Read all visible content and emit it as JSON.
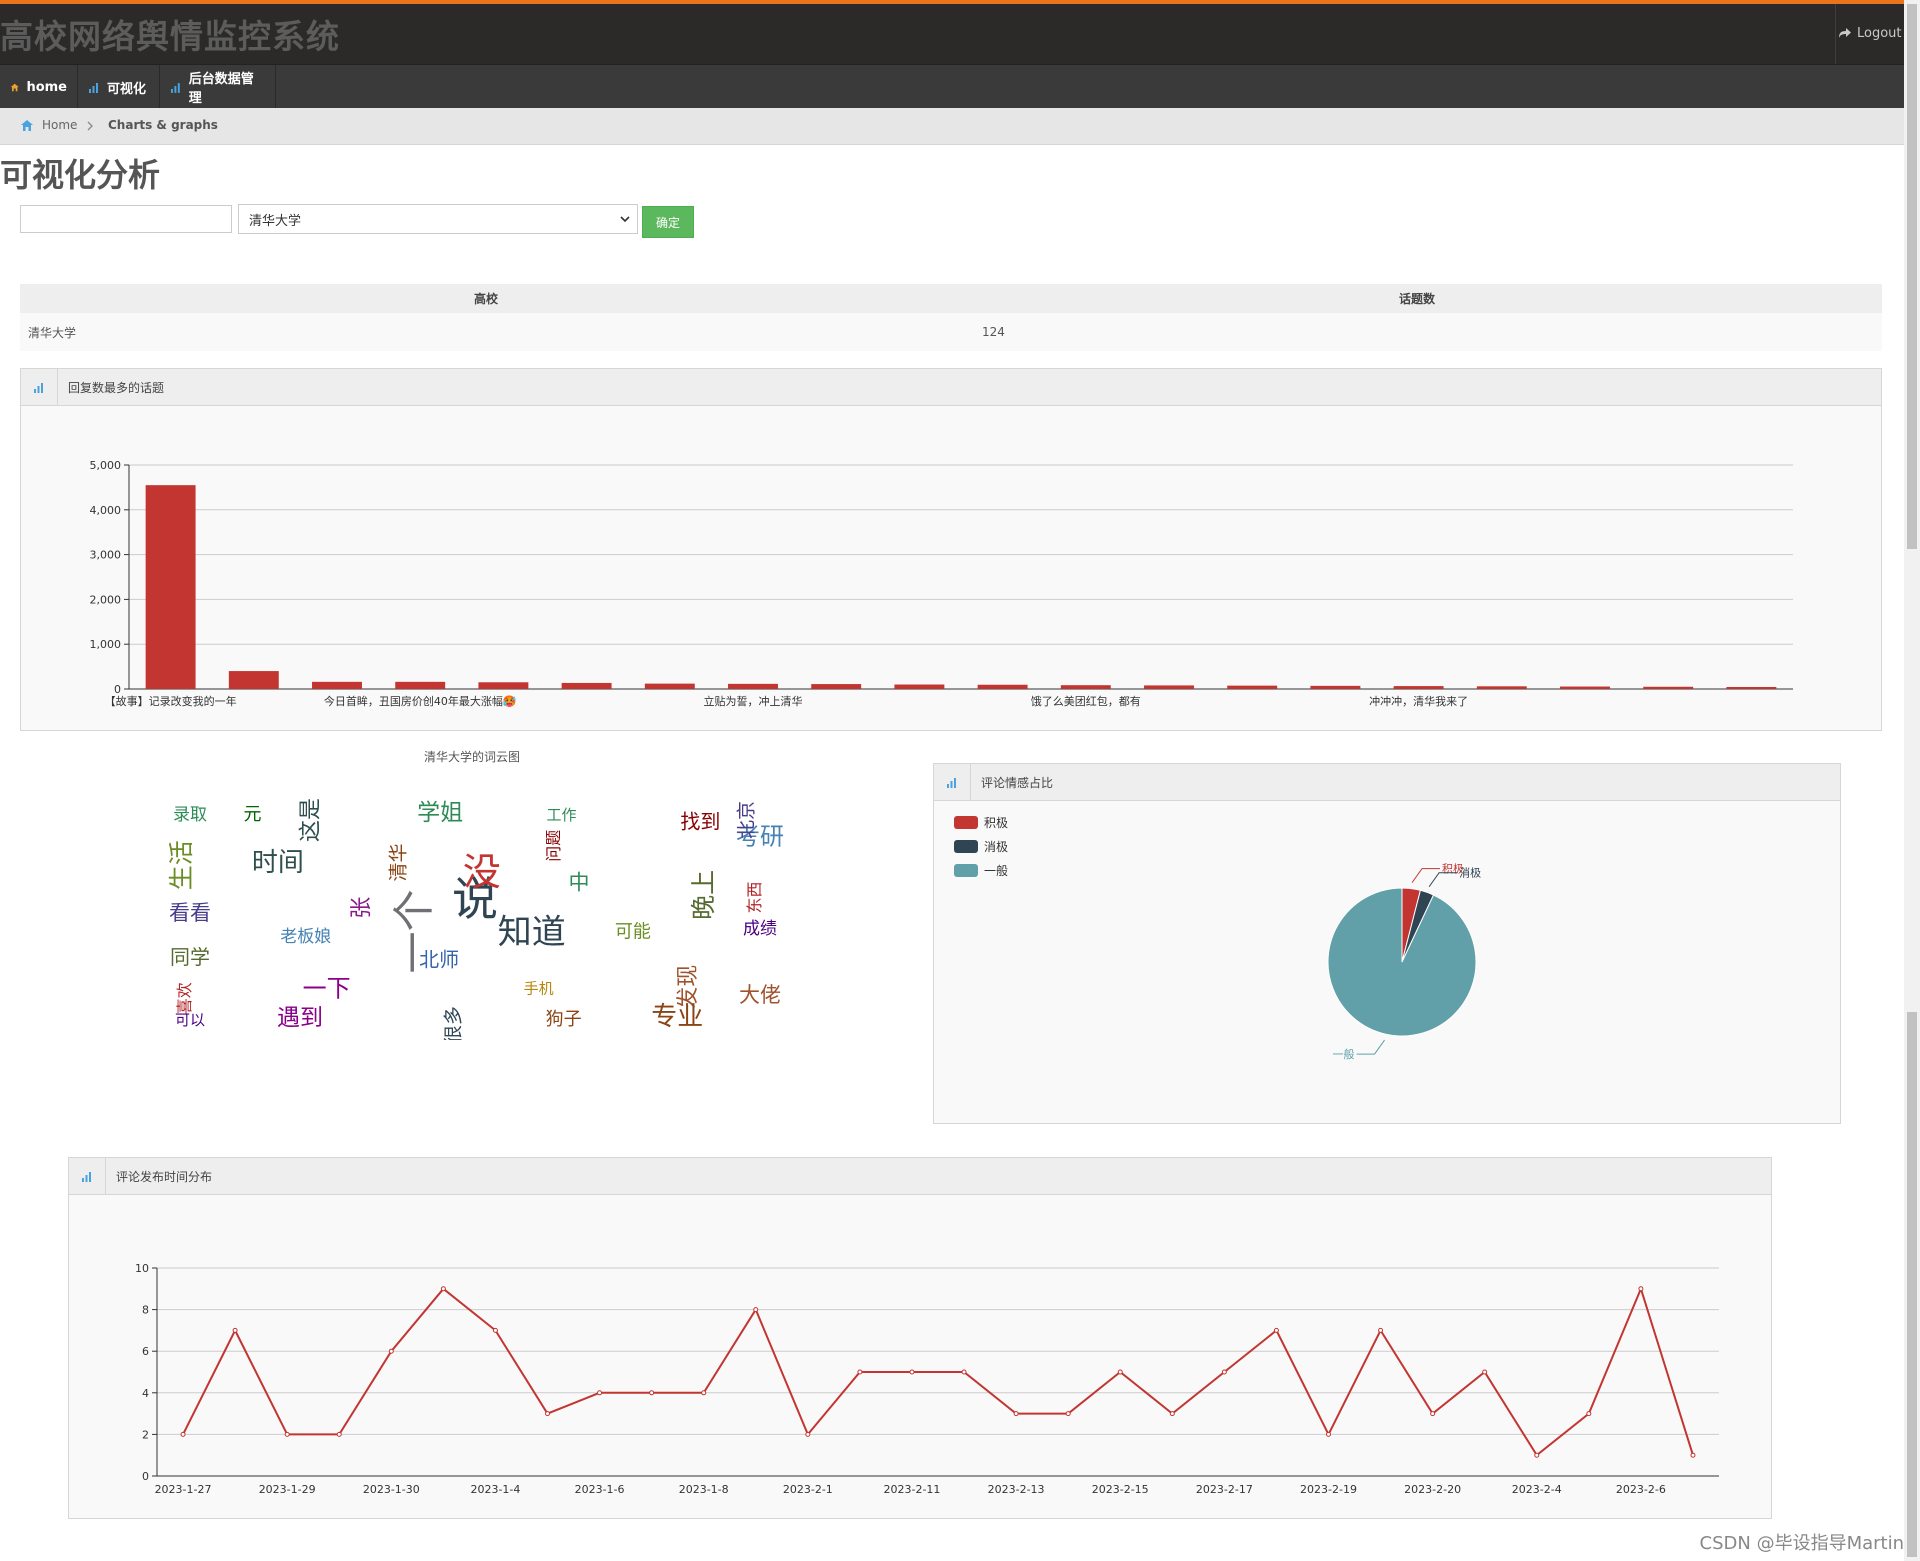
{
  "app": {
    "title": "高校网络舆情监控系统",
    "logout_label": "Logout",
    "colors": {
      "accent": "#e8741c",
      "header_bg": "#2b2a28",
      "nav_bg": "#3a3a3a",
      "bar": "#c23531",
      "button": "#5cb85c"
    }
  },
  "nav": {
    "items": [
      {
        "label": "home",
        "icon": "home-icon"
      },
      {
        "label": "可视化",
        "icon": "bar-chart-icon"
      },
      {
        "label": "后台数据管理",
        "icon": "bar-chart-icon"
      }
    ]
  },
  "breadcrumb": {
    "home": "Home",
    "current": "Charts & graphs"
  },
  "page": {
    "title": "可视化分析"
  },
  "filter": {
    "search_value": "",
    "selected_school": "清华大学",
    "confirm_label": "确定"
  },
  "summary_table": {
    "headers": [
      "高校",
      "话题数"
    ],
    "rows": [
      {
        "school": "清华大学",
        "count": "124"
      }
    ]
  },
  "panels": {
    "top_topics": "回复数最多的话题",
    "wordcloud_title": "清华大学的词云图",
    "sentiment": "评论情感占比",
    "time_dist": "评论发布时间分布"
  },
  "chart_data": [
    {
      "type": "bar",
      "title": "回复数最多的话题",
      "categories": [
        "【故事】记录改变我的一年",
        "",
        "",
        "今日首眸，丑国房价创40年最大涨幅🥵",
        "",
        "",
        "",
        "立贴为誓，冲上清华",
        "",
        "",
        "",
        "饿了么美团红包，都有",
        "",
        "",
        "",
        "冲冲冲，清华我来了",
        "",
        "",
        "",
        ""
      ],
      "values": [
        4550,
        400,
        160,
        160,
        150,
        135,
        120,
        115,
        110,
        100,
        95,
        85,
        80,
        75,
        70,
        65,
        60,
        55,
        50,
        45
      ],
      "yticks": [
        "0",
        "1,000",
        "2,000",
        "3,000",
        "4,000",
        "5,000"
      ],
      "ylim": [
        0,
        5000
      ],
      "grid": true
    },
    {
      "type": "pie",
      "title": "评论情感占比",
      "legend": [
        "积极",
        "消极",
        "一般"
      ],
      "legend_position": "top-left",
      "values": [
        4,
        3,
        93
      ],
      "colors": [
        "#c23531",
        "#2f4554",
        "#61a0a8"
      ]
    },
    {
      "type": "line",
      "title": "评论发布时间分布",
      "x": [
        "2023-1-27",
        "",
        "2023-1-29",
        "",
        "2023-1-30",
        "",
        "2023-1-4",
        "",
        "2023-1-6",
        "",
        "2023-1-8",
        "",
        "2023-2-1",
        "",
        "2023-2-11",
        "",
        "2023-2-13",
        "",
        "2023-2-15",
        "",
        "2023-2-17",
        "",
        "2023-2-19",
        "",
        "2023-2-20",
        "",
        "2023-2-4",
        "",
        "2023-2-6",
        ""
      ],
      "values": [
        2,
        7,
        2,
        2,
        6,
        9,
        7,
        3,
        4,
        4,
        4,
        8,
        2,
        5,
        5,
        5,
        3,
        3,
        5,
        3,
        5,
        7,
        2,
        7,
        3,
        5,
        1,
        3,
        9,
        1
      ],
      "yticks": [
        "0",
        "2",
        "4",
        "6",
        "8",
        "10"
      ],
      "ylim": [
        0,
        10
      ],
      "grid": true,
      "color": "#c23531"
    }
  ],
  "wordcloud": {
    "words": [
      {
        "t": "说",
        "c": "#2f4554"
      },
      {
        "t": "一个",
        "c": "#6e7074"
      },
      {
        "t": "没",
        "c": "#c23531"
      },
      {
        "t": "知道",
        "c": "#2f4554"
      },
      {
        "t": "张",
        "c": "#8b1a8b"
      },
      {
        "t": "中",
        "c": "#2e8b57"
      },
      {
        "t": "北师",
        "c": "#3366aa"
      },
      {
        "t": "清华",
        "c": "#8b4513"
      },
      {
        "t": "可能",
        "c": "#6b8e23"
      },
      {
        "t": "老板娘",
        "c": "#4682b4"
      },
      {
        "t": "问题",
        "c": "#8b0000"
      },
      {
        "t": "手机",
        "c": "#b8860b"
      },
      {
        "t": "时间",
        "c": "#2f4f4f"
      },
      {
        "t": "晚上",
        "c": "#556b2f"
      },
      {
        "t": "一下",
        "c": "#8b008b"
      },
      {
        "t": "学姐",
        "c": "#2e8b57"
      },
      {
        "t": "发现",
        "c": "#a0522d"
      },
      {
        "t": "看看",
        "c": "#483d8b"
      },
      {
        "t": "找到",
        "c": "#8b0000"
      },
      {
        "t": "很多",
        "c": "#2f4554"
      },
      {
        "t": "元",
        "c": "#006400"
      },
      {
        "t": "成绩",
        "c": "#4b0082"
      },
      {
        "t": "喜欢",
        "c": "#b22222"
      },
      {
        "t": "工作",
        "c": "#2e8b57"
      },
      {
        "t": "专业",
        "c": "#8b4513"
      },
      {
        "t": "生活",
        "c": "#6b8e23"
      },
      {
        "t": "考研",
        "c": "#4682b4"
      },
      {
        "t": "遇到",
        "c": "#8b008b"
      },
      {
        "t": "这是",
        "c": "#2f4f4f"
      },
      {
        "t": "大佬",
        "c": "#a0522d"
      },
      {
        "t": "同学",
        "c": "#556b2f"
      },
      {
        "t": "北京",
        "c": "#483d8b"
      },
      {
        "t": "狗子",
        "c": "#8b4513"
      },
      {
        "t": "录取",
        "c": "#2e8b57"
      },
      {
        "t": "东西",
        "c": "#b22222"
      },
      {
        "t": "可以",
        "c": "#4b0082"
      }
    ]
  }
}
